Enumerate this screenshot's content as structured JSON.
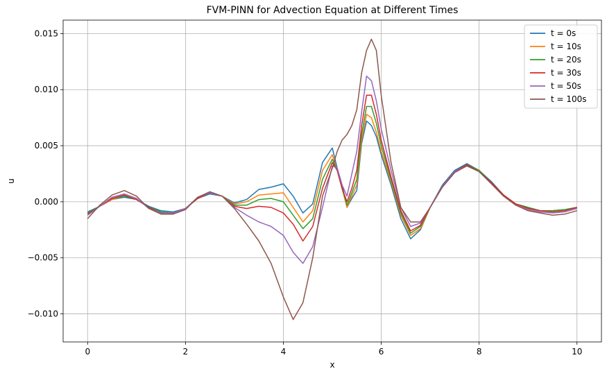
{
  "chart_data": {
    "type": "line",
    "title": "FVM-PINN for Advection Equation at Different Times",
    "xlabel": "x",
    "ylabel": "u",
    "xlim": [
      -0.5,
      10.5
    ],
    "ylim": [
      -0.0125,
      0.0162
    ],
    "xticks": [
      0,
      2,
      4,
      6,
      8,
      10
    ],
    "xtick_labels": [
      "0",
      "2",
      "4",
      "6",
      "8",
      "10"
    ],
    "yticks": [
      -0.01,
      -0.005,
      0.0,
      0.005,
      0.01,
      0.015
    ],
    "ytick_labels": [
      "−0.010",
      "−0.005",
      "0.000",
      "0.005",
      "0.010",
      "0.015"
    ],
    "grid": true,
    "legend_position": "top-right",
    "series": [
      {
        "name": "t = 0s",
        "color": "#1f77b4",
        "x": [
          0,
          0.25,
          0.5,
          0.75,
          1.0,
          1.25,
          1.5,
          1.75,
          2.0,
          2.25,
          2.5,
          2.75,
          3.0,
          3.25,
          3.5,
          3.75,
          4.0,
          4.2,
          4.4,
          4.6,
          4.8,
          5.0,
          5.1,
          5.2,
          5.3,
          5.4,
          5.5,
          5.6,
          5.7,
          5.8,
          5.9,
          6.0,
          6.2,
          6.4,
          6.6,
          6.8,
          7.0,
          7.25,
          7.5,
          7.75,
          8.0,
          8.25,
          8.5,
          8.75,
          9.0,
          9.25,
          9.5,
          9.75,
          10.0
        ],
        "y": [
          -0.0009,
          -0.0004,
          0.0002,
          0.0004,
          0.0002,
          -0.0004,
          -0.0008,
          -0.0009,
          -0.0006,
          0.0003,
          0.0007,
          0.0005,
          -0.0001,
          0.0002,
          0.0011,
          0.0013,
          0.0016,
          0.0005,
          -0.001,
          -0.0002,
          0.0035,
          0.0048,
          0.003,
          0.0015,
          -0.0005,
          0.0003,
          0.001,
          0.0052,
          0.0072,
          0.0068,
          0.0058,
          0.0042,
          0.0015,
          -0.0015,
          -0.0033,
          -0.0025,
          -0.0005,
          0.0015,
          0.0028,
          0.0034,
          0.0028,
          0.0018,
          0.0006,
          -0.0002,
          -0.0005,
          -0.0008,
          -0.0008,
          -0.0007,
          -0.0005
        ]
      },
      {
        "name": "t = 10s",
        "color": "#ff7f0e",
        "x": [
          0,
          0.25,
          0.5,
          0.75,
          1.0,
          1.25,
          1.5,
          1.75,
          2.0,
          2.25,
          2.5,
          2.75,
          3.0,
          3.25,
          3.5,
          3.75,
          4.0,
          4.2,
          4.4,
          4.6,
          4.8,
          5.0,
          5.1,
          5.2,
          5.3,
          5.4,
          5.5,
          5.6,
          5.7,
          5.8,
          5.9,
          6.0,
          6.2,
          6.4,
          6.6,
          6.8,
          7.0,
          7.25,
          7.5,
          7.75,
          8.0,
          8.25,
          8.5,
          8.75,
          9.0,
          9.25,
          9.5,
          9.75,
          10.0
        ],
        "y": [
          -0.001,
          -0.0004,
          0.0002,
          0.0005,
          0.0002,
          -0.0005,
          -0.0009,
          -0.001,
          -0.0006,
          0.0003,
          0.0008,
          0.0005,
          -0.0002,
          0.0,
          0.0006,
          0.0007,
          0.0008,
          -0.0005,
          -0.0018,
          -0.0008,
          0.0028,
          0.0042,
          0.0028,
          0.0012,
          -0.0005,
          0.0005,
          0.0015,
          0.0055,
          0.0078,
          0.0075,
          0.0062,
          0.0045,
          0.0018,
          -0.0012,
          -0.003,
          -0.0024,
          -0.0005,
          0.0014,
          0.0027,
          0.0033,
          0.0028,
          0.0017,
          0.0006,
          -0.0002,
          -0.0005,
          -0.0008,
          -0.0008,
          -0.0007,
          -0.0005
        ]
      },
      {
        "name": "t = 20s",
        "color": "#2ca02c",
        "x": [
          0,
          0.25,
          0.5,
          0.75,
          1.0,
          1.25,
          1.5,
          1.75,
          2.0,
          2.25,
          2.5,
          2.75,
          3.0,
          3.25,
          3.5,
          3.75,
          4.0,
          4.2,
          4.4,
          4.6,
          4.8,
          5.0,
          5.1,
          5.2,
          5.3,
          5.4,
          5.5,
          5.6,
          5.7,
          5.8,
          5.9,
          6.0,
          6.2,
          6.4,
          6.6,
          6.8,
          7.0,
          7.25,
          7.5,
          7.75,
          8.0,
          8.25,
          8.5,
          8.75,
          9.0,
          9.25,
          9.5,
          9.75,
          10.0
        ],
        "y": [
          -0.001,
          -0.0004,
          0.0003,
          0.0005,
          0.0002,
          -0.0005,
          -0.0009,
          -0.001,
          -0.0006,
          0.0003,
          0.0008,
          0.0005,
          -0.0003,
          -0.0003,
          0.0002,
          0.0003,
          0.0,
          -0.0012,
          -0.0024,
          -0.0015,
          0.002,
          0.0038,
          0.0028,
          0.0012,
          -0.0003,
          0.0008,
          0.002,
          0.006,
          0.0085,
          0.0085,
          0.007,
          0.005,
          0.002,
          -0.001,
          -0.0028,
          -0.0022,
          -0.0005,
          0.0014,
          0.0027,
          0.0033,
          0.0028,
          0.0017,
          0.0006,
          -0.0002,
          -0.0005,
          -0.0008,
          -0.0008,
          -0.0007,
          -0.0005
        ]
      },
      {
        "name": "t = 30s",
        "color": "#d62728",
        "x": [
          0,
          0.25,
          0.5,
          0.75,
          1.0,
          1.25,
          1.5,
          1.75,
          2.0,
          2.25,
          2.5,
          2.75,
          3.0,
          3.25,
          3.5,
          3.75,
          4.0,
          4.2,
          4.4,
          4.6,
          4.8,
          5.0,
          5.1,
          5.2,
          5.3,
          5.4,
          5.5,
          5.6,
          5.7,
          5.8,
          5.9,
          6.0,
          6.2,
          6.4,
          6.6,
          6.8,
          7.0,
          7.25,
          7.5,
          7.75,
          8.0,
          8.25,
          8.5,
          8.75,
          9.0,
          9.25,
          9.5,
          9.75,
          10.0
        ],
        "y": [
          -0.0011,
          -0.0004,
          0.0003,
          0.0006,
          0.0002,
          -0.0005,
          -0.001,
          -0.001,
          -0.0006,
          0.0003,
          0.0008,
          0.0005,
          -0.0004,
          -0.0006,
          -0.0004,
          -0.0005,
          -0.001,
          -0.002,
          -0.0035,
          -0.0022,
          0.0012,
          0.0035,
          0.0028,
          0.0012,
          0.0,
          0.0012,
          0.0028,
          0.0068,
          0.0095,
          0.0095,
          0.0078,
          0.0055,
          0.0022,
          -0.0008,
          -0.0026,
          -0.0021,
          -0.0005,
          0.0014,
          0.0027,
          0.0033,
          0.0027,
          0.0017,
          0.0006,
          -0.0002,
          -0.0006,
          -0.0008,
          -0.0009,
          -0.0008,
          -0.0005
        ]
      },
      {
        "name": "t = 50s",
        "color": "#9467bd",
        "x": [
          0,
          0.25,
          0.5,
          0.75,
          1.0,
          1.25,
          1.5,
          1.75,
          2.0,
          2.25,
          2.5,
          2.75,
          3.0,
          3.25,
          3.5,
          3.75,
          4.0,
          4.2,
          4.4,
          4.6,
          4.8,
          5.0,
          5.1,
          5.2,
          5.3,
          5.4,
          5.5,
          5.6,
          5.7,
          5.8,
          5.9,
          6.0,
          6.2,
          6.4,
          6.6,
          6.8,
          7.0,
          7.25,
          7.5,
          7.75,
          8.0,
          8.25,
          8.5,
          8.75,
          9.0,
          9.25,
          9.5,
          9.75,
          10.0
        ],
        "y": [
          -0.0012,
          -0.0004,
          0.0004,
          0.0007,
          0.0003,
          -0.0006,
          -0.001,
          -0.001,
          -0.0006,
          0.0004,
          0.0008,
          0.0005,
          -0.0005,
          -0.0012,
          -0.0018,
          -0.0022,
          -0.003,
          -0.0045,
          -0.0055,
          -0.004,
          -0.0005,
          0.0032,
          0.003,
          0.0015,
          0.0005,
          0.0025,
          0.0045,
          0.008,
          0.0112,
          0.0108,
          0.009,
          0.0065,
          0.0028,
          -0.0005,
          -0.0022,
          -0.0019,
          -0.0005,
          0.0014,
          0.0027,
          0.0032,
          0.0027,
          0.0016,
          0.0005,
          -0.0003,
          -0.0007,
          -0.0009,
          -0.001,
          -0.0009,
          -0.0006
        ]
      },
      {
        "name": "t = 100s",
        "color": "#8c564b",
        "x": [
          0,
          0.25,
          0.5,
          0.75,
          1.0,
          1.25,
          1.5,
          1.75,
          2.0,
          2.25,
          2.5,
          2.75,
          3.0,
          3.25,
          3.5,
          3.75,
          4.0,
          4.2,
          4.4,
          4.6,
          4.8,
          5.0,
          5.1,
          5.2,
          5.3,
          5.4,
          5.5,
          5.6,
          5.7,
          5.8,
          5.9,
          6.0,
          6.2,
          6.4,
          6.6,
          6.8,
          7.0,
          7.25,
          7.5,
          7.75,
          8.0,
          8.25,
          8.5,
          8.75,
          9.0,
          9.25,
          9.5,
          9.75,
          10.0
        ],
        "y": [
          -0.0015,
          -0.0003,
          0.0006,
          0.001,
          0.0005,
          -0.0006,
          -0.0011,
          -0.0011,
          -0.0007,
          0.0004,
          0.0009,
          0.0005,
          -0.0006,
          -0.002,
          -0.0035,
          -0.0055,
          -0.0085,
          -0.0105,
          -0.009,
          -0.005,
          0.0005,
          0.003,
          0.0045,
          0.0055,
          0.006,
          0.0068,
          0.0082,
          0.0115,
          0.0135,
          0.0145,
          0.0135,
          0.0095,
          0.0035,
          -0.0005,
          -0.0018,
          -0.0018,
          -0.0005,
          0.0013,
          0.0026,
          0.0032,
          0.0027,
          0.0016,
          0.0005,
          -0.0003,
          -0.0008,
          -0.001,
          -0.0012,
          -0.0011,
          -0.0008
        ]
      }
    ]
  }
}
